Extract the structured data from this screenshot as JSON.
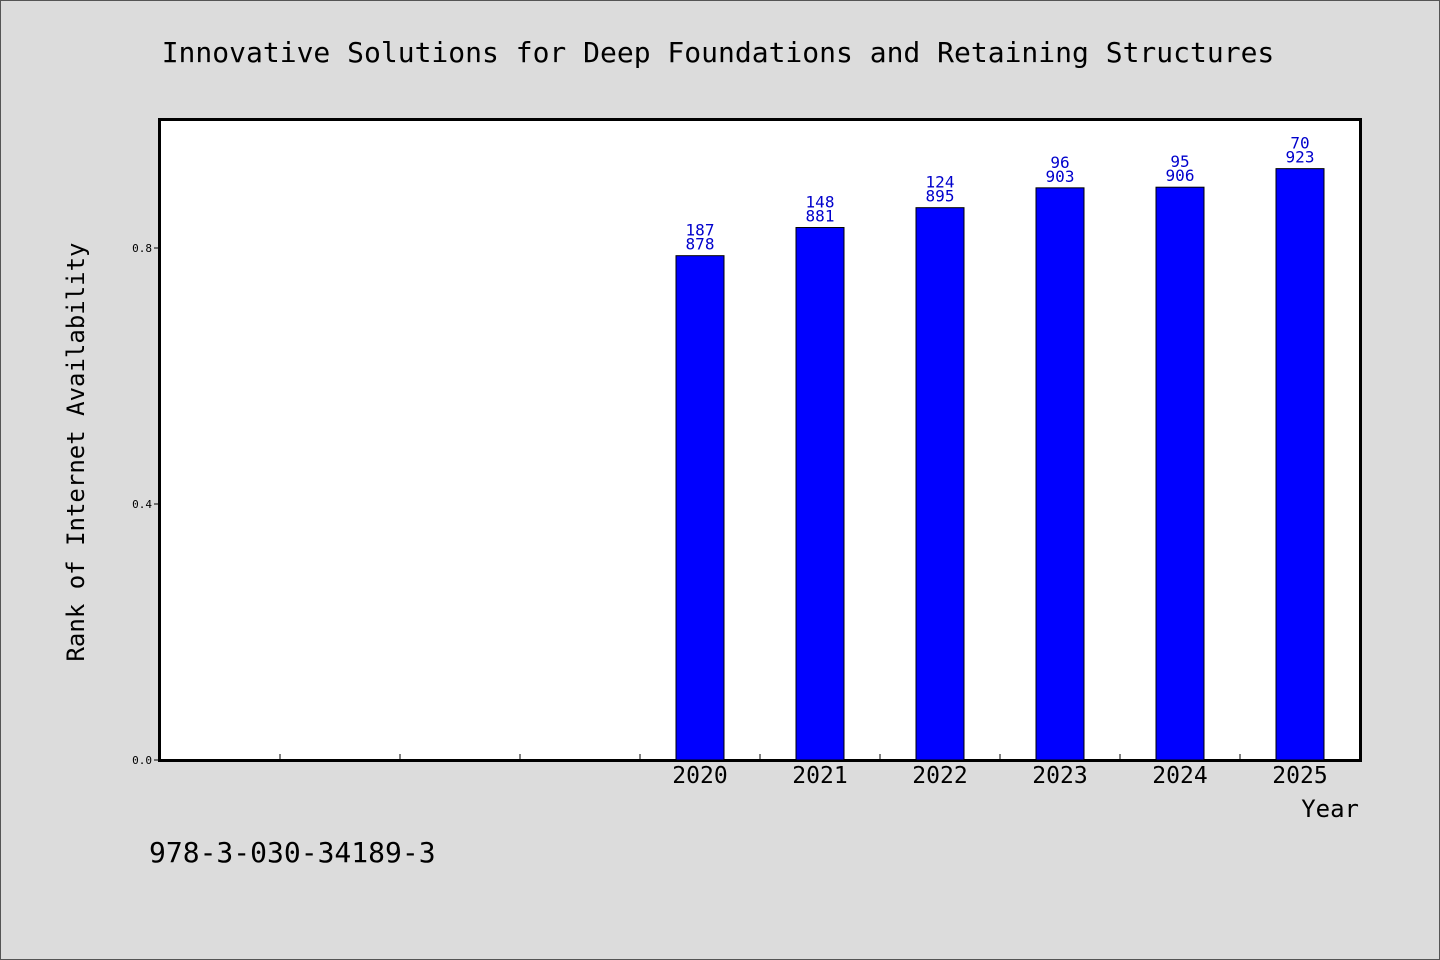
{
  "chart_data": {
    "type": "bar",
    "title": "Innovative Solutions for Deep Foundations and Retaining Structures",
    "xlabel": "Year",
    "ylabel": "Rank of Internet Availability",
    "categories": [
      "2020",
      "2021",
      "2022",
      "2023",
      "2024",
      "2025"
    ],
    "values": [
      0.788,
      0.832,
      0.863,
      0.894,
      0.895,
      0.924
    ],
    "bar_labels": [
      [
        "187",
        "878"
      ],
      [
        "148",
        "881"
      ],
      [
        "124",
        "895"
      ],
      [
        "96",
        "903"
      ],
      [
        "95",
        "906"
      ],
      [
        "70",
        "923"
      ]
    ],
    "ylim": [
      0,
      1.0
    ],
    "yticks": [
      "0.0",
      "0.4",
      "0.8"
    ],
    "ytick_values": [
      0.0,
      0.4,
      0.8
    ],
    "x_slots": 10,
    "bar_color": "#0000ff",
    "label_color": "#0000cc",
    "grid": false
  },
  "footer": {
    "isbn": "978-3-030-34189-3"
  }
}
